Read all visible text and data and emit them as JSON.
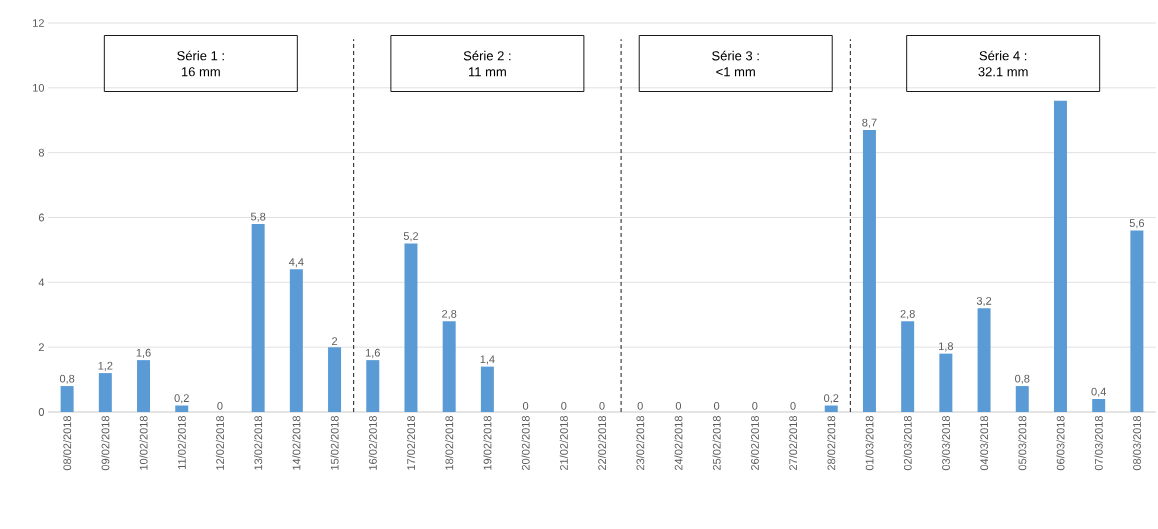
{
  "chart_data": {
    "type": "bar",
    "categories": [
      "08/02/2018",
      "09/02/2018",
      "10/02/2018",
      "11/02/2018",
      "12/02/2018",
      "13/02/2018",
      "14/02/2018",
      "15/02/2018",
      "16/02/2018",
      "17/02/2018",
      "18/02/2018",
      "19/02/2018",
      "20/02/2018",
      "21/02/2018",
      "22/02/2018",
      "23/02/2018",
      "24/02/2018",
      "25/02/2018",
      "26/02/2018",
      "27/02/2018",
      "28/02/2018",
      "01/03/2018",
      "02/03/2018",
      "03/03/2018",
      "04/03/2018",
      "05/03/2018",
      "06/03/2018",
      "07/03/2018",
      "08/03/2018"
    ],
    "values": [
      0.8,
      1.2,
      1.6,
      0.2,
      0,
      5.8,
      4.4,
      2,
      1.6,
      5.2,
      2.8,
      1.4,
      0,
      0,
      0,
      0,
      0,
      0,
      0,
      0,
      0.2,
      8.7,
      2.8,
      1.8,
      3.2,
      0.8,
      9.6,
      0.4,
      5.6
    ],
    "value_labels": [
      "0,8",
      "1,2",
      "1,6",
      "0,2",
      "0",
      "5,8",
      "4,4",
      "2",
      "1,6",
      "5,2",
      "2,8",
      "1,4",
      "0",
      "0",
      "0",
      "0",
      "0",
      "0",
      "0",
      "0",
      "0,2",
      "8,7",
      "2,8",
      "1,8",
      "3,2",
      "0,8",
      null,
      "0,4",
      "5,6"
    ],
    "color": "#5b9bd5",
    "ylim": [
      0,
      12
    ],
    "yticks": [
      0,
      2,
      4,
      6,
      8,
      10,
      12
    ],
    "grid": "y",
    "annotations": [
      "Série 1 : 16 mm",
      "Série 2 : 11 mm",
      "Série 3 : <1 mm",
      "Série 4 : 32.1 mm"
    ]
  }
}
